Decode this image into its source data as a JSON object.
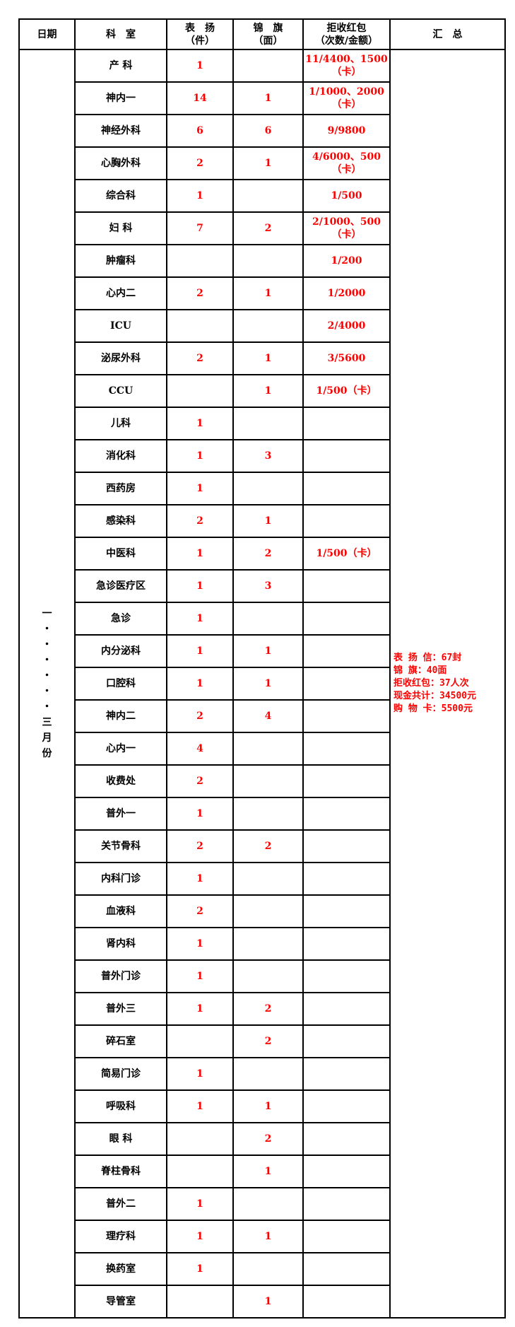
{
  "headers": {
    "date": "日期",
    "dept": "科　室",
    "praise": [
      "表　扬",
      "（件）"
    ],
    "banner": [
      "锦　旗",
      "（面）"
    ],
    "envelope": [
      "拒收红包",
      "（次数/金额）"
    ],
    "summary": "汇　总"
  },
  "date_chars": [
    "一",
    "・",
    "・",
    "・",
    "・",
    "・",
    "・",
    "三",
    "月",
    "份"
  ],
  "rows": [
    {
      "dept": "产 科",
      "praise": "1",
      "banner": "",
      "envelope": "11/4400、1500（卡）"
    },
    {
      "dept": "神内一",
      "praise": "14",
      "banner": "1",
      "envelope": "1/1000、2000（卡）"
    },
    {
      "dept": "神经外科",
      "praise": "6",
      "banner": "6",
      "envelope": "9/9800"
    },
    {
      "dept": "心胸外科",
      "praise": "2",
      "banner": "1",
      "envelope": "4/6000、500（卡）"
    },
    {
      "dept": "综合科",
      "praise": "1",
      "banner": "",
      "envelope": "1/500"
    },
    {
      "dept": "妇 科",
      "praise": "7",
      "banner": "2",
      "envelope": "2/1000、500（卡）"
    },
    {
      "dept": "肿瘤科",
      "praise": "",
      "banner": "",
      "envelope": "1/200"
    },
    {
      "dept": "心内二",
      "praise": "2",
      "banner": "1",
      "envelope": "1/2000"
    },
    {
      "dept": "ICU",
      "praise": "",
      "banner": "",
      "envelope": "2/4000"
    },
    {
      "dept": "泌尿外科",
      "praise": "2",
      "banner": "1",
      "envelope": "3/5600"
    },
    {
      "dept": "CCU",
      "praise": "",
      "banner": "1",
      "envelope": "1/500（卡）"
    },
    {
      "dept": "儿科",
      "praise": "1",
      "banner": "",
      "envelope": ""
    },
    {
      "dept": "消化科",
      "praise": "1",
      "banner": "3",
      "envelope": ""
    },
    {
      "dept": "西药房",
      "praise": "1",
      "banner": "",
      "envelope": ""
    },
    {
      "dept": "感染科",
      "praise": "2",
      "banner": "1",
      "envelope": ""
    },
    {
      "dept": "中医科",
      "praise": "1",
      "banner": "2",
      "envelope": "1/500（卡）"
    },
    {
      "dept": "急诊医疗区",
      "praise": "1",
      "banner": "3",
      "envelope": ""
    },
    {
      "dept": "急诊",
      "praise": "1",
      "banner": "",
      "envelope": ""
    },
    {
      "dept": "内分泌科",
      "praise": "1",
      "banner": "1",
      "envelope": ""
    },
    {
      "dept": "口腔科",
      "praise": "1",
      "banner": "1",
      "envelope": ""
    },
    {
      "dept": "神内二",
      "praise": "2",
      "banner": "4",
      "envelope": ""
    },
    {
      "dept": "心内一",
      "praise": "4",
      "banner": "",
      "envelope": ""
    },
    {
      "dept": "收费处",
      "praise": "2",
      "banner": "",
      "envelope": ""
    },
    {
      "dept": "普外一",
      "praise": "1",
      "banner": "",
      "envelope": ""
    },
    {
      "dept": "关节骨科",
      "praise": "2",
      "banner": "2",
      "envelope": ""
    },
    {
      "dept": "内科门诊",
      "praise": "1",
      "banner": "",
      "envelope": ""
    },
    {
      "dept": "血液科",
      "praise": "2",
      "banner": "",
      "envelope": ""
    },
    {
      "dept": "肾内科",
      "praise": "1",
      "banner": "",
      "envelope": ""
    },
    {
      "dept": "普外门诊",
      "praise": "1",
      "banner": "",
      "envelope": ""
    },
    {
      "dept": "普外三",
      "praise": "1",
      "banner": "2",
      "envelope": ""
    },
    {
      "dept": "碎石室",
      "praise": "",
      "banner": "2",
      "envelope": ""
    },
    {
      "dept": "简易门诊",
      "praise": "1",
      "banner": "",
      "envelope": ""
    },
    {
      "dept": "呼吸科",
      "praise": "1",
      "banner": "1",
      "envelope": ""
    },
    {
      "dept": "眼 科",
      "praise": "",
      "banner": "2",
      "envelope": ""
    },
    {
      "dept": "脊柱骨科",
      "praise": "",
      "banner": "1",
      "envelope": ""
    },
    {
      "dept": "普外二",
      "praise": "1",
      "banner": "",
      "envelope": ""
    },
    {
      "dept": "理疗科",
      "praise": "1",
      "banner": "1",
      "envelope": ""
    },
    {
      "dept": "换药室",
      "praise": "1",
      "banner": "",
      "envelope": ""
    },
    {
      "dept": "导管室",
      "praise": "",
      "banner": "1",
      "envelope": ""
    }
  ],
  "summary_lines": [
    "表 扬 信：67封",
    "锦     旗：40面",
    "拒收红包：37人次",
    "现金共计：34500元",
    "购 物 卡：5500元"
  ],
  "colors": {
    "value_text": "#ff0000",
    "label_text": "#000000"
  }
}
